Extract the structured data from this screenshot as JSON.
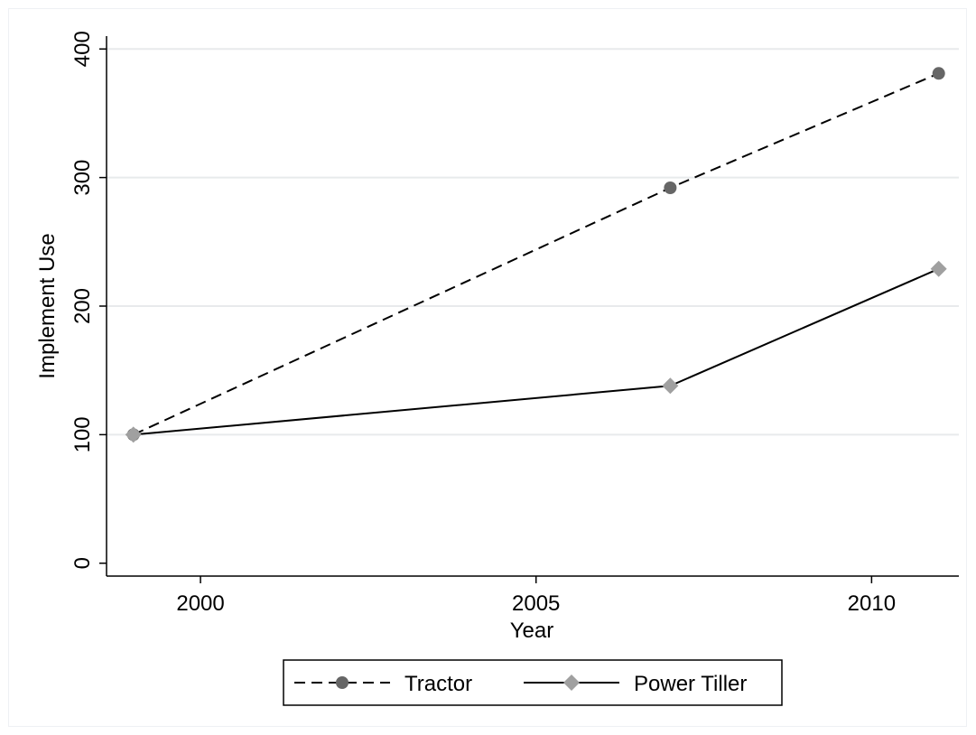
{
  "chart_data": {
    "type": "line",
    "title": "",
    "xlabel": "Year",
    "ylabel": "Implement Use",
    "xlim": [
      1998.6,
      2011.3
    ],
    "ylim": [
      -10,
      410
    ],
    "x_ticks": [
      2000,
      2005,
      2010
    ],
    "y_ticks": [
      0,
      100,
      200,
      300,
      400
    ],
    "grid": "horizontal",
    "legend_position": "bottom",
    "series": [
      {
        "name": "Tractor",
        "x": [
          1999,
          2007,
          2011
        ],
        "values": [
          100,
          292,
          381
        ],
        "line_style": "dashed",
        "marker": "circle",
        "color": "#666666",
        "line_color": "#000000"
      },
      {
        "name": "Power Tiller",
        "x": [
          1999,
          2007,
          2011
        ],
        "values": [
          100,
          138,
          229
        ],
        "line_style": "solid",
        "marker": "diamond",
        "color": "#a0a0a0",
        "line_color": "#000000"
      }
    ]
  }
}
